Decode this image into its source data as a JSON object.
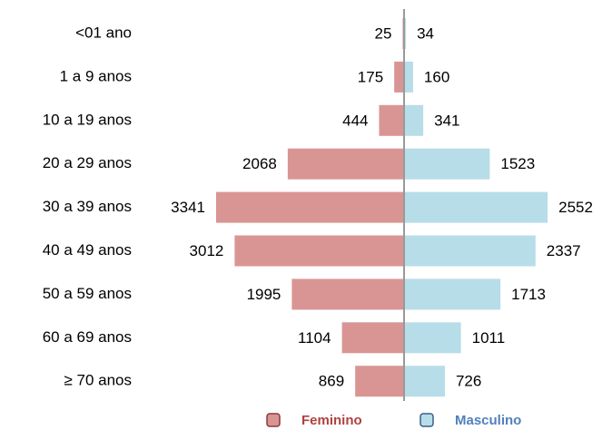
{
  "chart_data": {
    "type": "pyramid",
    "categories": [
      "<01 ano",
      "1 a 9 anos",
      "10 a 19 anos",
      "20 a 29 anos",
      "30 a 39 anos",
      "40 a 49 anos",
      "50 a 59 anos",
      "60 a 69 anos",
      "≥ 70 anos"
    ],
    "series": [
      {
        "name": "Feminino",
        "color": "#d99594",
        "label_color": "#b0413e",
        "values": [
          25,
          175,
          444,
          2068,
          3341,
          3012,
          1995,
          1104,
          869
        ]
      },
      {
        "name": "Masculino",
        "color": "#b7dde8",
        "label_color": "#4f81bd",
        "values": [
          34,
          160,
          341,
          1523,
          2552,
          2337,
          1713,
          1011,
          726
        ]
      }
    ],
    "legend": "bottom"
  }
}
